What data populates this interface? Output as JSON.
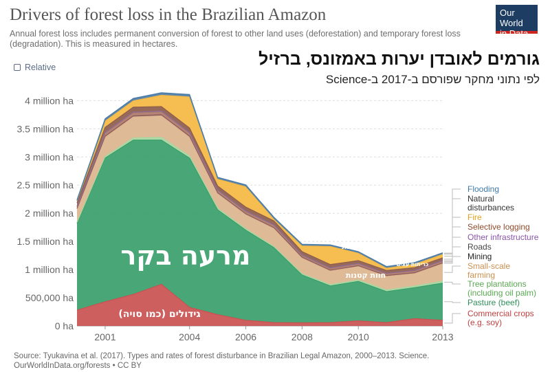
{
  "header": {
    "title": "Drivers of forest loss in the Brazilian Amazon",
    "subtitle": "Annual forest loss includes permanent conversion of forest to other land uses (deforestation) and temporary forest loss (degradation). This is measured in hectares.",
    "logo_line1": "Our World",
    "logo_line2": "in Data",
    "relative_toggle": "Relative",
    "hebrew_title": "גורמים לאובדן יערות באמזונס, ברזיל",
    "hebrew_subtitle": "לפי נתוני מחקר שפורסם ב-2017 ב-Science"
  },
  "footer": {
    "source_line1": "Source: Tyukavina et al. (2017). Types and rates of forest disturbance in Brazilian Legal Amazon, 2000–2013. Science.",
    "source_line2": "OurWorldInData.org/forests • CC BY"
  },
  "colors": {
    "commercial_crops": "#c95151",
    "pasture": "#3a9e6a",
    "tree_plantations": "#a8d5a0",
    "small_scale_farming": "#dcb48e",
    "mining": "#8b5a5a",
    "roads": "#b07a6a",
    "other_infrastructure": "#8a6c99",
    "selective_logging": "#8d5c4a",
    "fire": "#f5b942",
    "natural_disturbances": "#5e86a8",
    "flooding": "#4a7ba6"
  },
  "chart_data": {
    "type": "area",
    "stacked": true,
    "x": [
      2000,
      2001,
      2002,
      2003,
      2004,
      2005,
      2006,
      2007,
      2008,
      2009,
      2010,
      2011,
      2012,
      2013
    ],
    "xtick_labels": [
      "2001",
      "2004",
      "2006",
      "2008",
      "2010",
      "2013"
    ],
    "ytick_labels": [
      "0 ha",
      "500,000 ha",
      "1 million ha",
      "1.5 million ha",
      "2 million ha",
      "2.5 million ha",
      "3 million ha",
      "3.5 million ha",
      "4 million ha"
    ],
    "ylim": [
      0,
      4200000
    ],
    "grid": true,
    "legend_placement": "right",
    "series": [
      {
        "name": "Commercial crops (e.g. soy)",
        "key": "commercial_crops",
        "values": [
          280000,
          430000,
          560000,
          740000,
          330000,
          200000,
          100000,
          60000,
          55000,
          60000,
          90000,
          60000,
          130000,
          100000
        ]
      },
      {
        "name": "Pasture (beef)",
        "key": "pasture",
        "values": [
          1540000,
          2550000,
          2740000,
          2560000,
          2650000,
          1860000,
          1600000,
          1330000,
          850000,
          650000,
          700000,
          550000,
          550000,
          660000
        ]
      },
      {
        "name": "Tree plantations (including oil palm)",
        "key": "tree_plantations",
        "values": [
          20000,
          30000,
          40000,
          50000,
          40000,
          30000,
          25000,
          20000,
          20000,
          25000,
          25000,
          30000,
          30000,
          35000
        ]
      },
      {
        "name": "Small-scale farming",
        "key": "small_scale_farming",
        "values": [
          230000,
          340000,
          370000,
          380000,
          330000,
          260000,
          250000,
          320000,
          280000,
          240000,
          240000,
          240000,
          220000,
          310000
        ]
      },
      {
        "name": "Mining",
        "key": "mining",
        "values": [
          15000,
          20000,
          20000,
          20000,
          20000,
          15000,
          15000,
          15000,
          15000,
          15000,
          15000,
          15000,
          15000,
          15000
        ]
      },
      {
        "name": "Roads",
        "key": "roads",
        "values": [
          30000,
          50000,
          50000,
          50000,
          50000,
          40000,
          40000,
          40000,
          30000,
          30000,
          30000,
          30000,
          30000,
          30000
        ]
      },
      {
        "name": "Other infrastructure",
        "key": "other_infrastructure",
        "values": [
          10000,
          15000,
          15000,
          15000,
          15000,
          10000,
          10000,
          10000,
          10000,
          10000,
          10000,
          10000,
          10000,
          10000
        ]
      },
      {
        "name": "Selective logging",
        "key": "selective_logging",
        "values": [
          60000,
          90000,
          90000,
          80000,
          80000,
          70000,
          70000,
          70000,
          60000,
          60000,
          50000,
          50000,
          50000,
          50000
        ]
      },
      {
        "name": "Fire",
        "key": "fire",
        "values": [
          30000,
          110000,
          110000,
          200000,
          550000,
          120000,
          360000,
          30000,
          100000,
          320000,
          130000,
          40000,
          60000,
          60000
        ]
      },
      {
        "name": "Natural disturbances",
        "key": "natural_disturbances",
        "values": [
          10000,
          20000,
          20000,
          20000,
          20000,
          15000,
          15000,
          15000,
          15000,
          15000,
          15000,
          15000,
          15000,
          15000
        ]
      },
      {
        "name": "Flooding",
        "key": "flooding",
        "values": [
          15000,
          25000,
          25000,
          25000,
          25000,
          20000,
          20000,
          20000,
          15000,
          15000,
          15000,
          15000,
          15000,
          15000
        ]
      }
    ],
    "annotations": {
      "pasture": "מרעה בקר",
      "crops": "גידולים (כמו סויה)",
      "small_farming": "חוות קטנות",
      "logging": "כריתות עצים",
      "fire": "שריפות"
    }
  }
}
